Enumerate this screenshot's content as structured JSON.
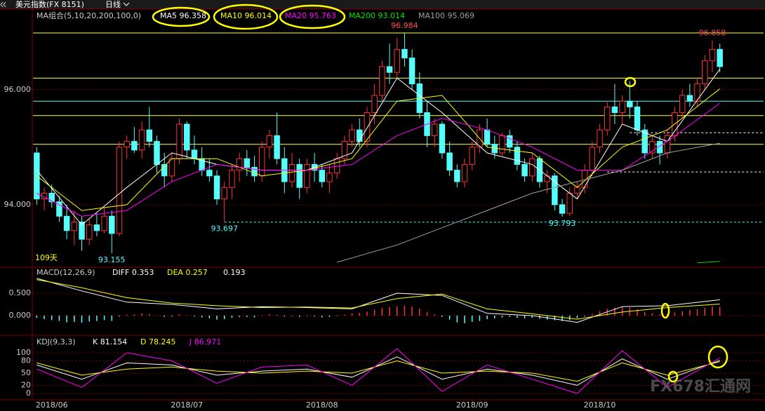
{
  "header": {
    "title": "美元指数(FX 8151)",
    "period": "日线"
  },
  "watermark": "FX678汇通网",
  "chart_data": [
    {
      "type": "candlestick",
      "title": "MA组合(5,10,20,200,100,0)",
      "note": "109天",
      "up_color": "#ff3232",
      "down_color": "#54fcfc",
      "xlim": [
        -0.5,
        91.5
      ],
      "xticks": [
        {
          "value": 2,
          "label": "2018/06"
        },
        {
          "value": 20,
          "label": "2018/07"
        },
        {
          "value": 38,
          "label": "2018/08"
        },
        {
          "value": 58,
          "label": "2018/09"
        },
        {
          "value": 75,
          "label": "2018/10"
        }
      ],
      "ylim": [
        92.95,
        97.07
      ],
      "yticks": [
        {
          "value": 96,
          "label": "96.000"
        },
        {
          "value": 94,
          "label": "94.000"
        }
      ],
      "candles": [
        [
          94.9,
          95.0,
          94.0,
          94.1
        ],
        [
          94.1,
          94.3,
          93.9,
          94.2
        ],
        [
          94.2,
          94.35,
          93.95,
          94.05
        ],
        [
          94.05,
          94.15,
          93.7,
          93.8
        ],
        [
          93.8,
          94.0,
          93.4,
          93.55
        ],
        [
          93.55,
          93.9,
          93.3,
          93.7
        ],
        [
          93.7,
          93.8,
          93.2,
          93.4
        ],
        [
          93.4,
          93.75,
          93.3,
          93.65
        ],
        [
          93.65,
          93.85,
          93.45,
          93.55
        ],
        [
          93.55,
          93.95,
          93.5,
          93.8
        ],
        [
          93.8,
          93.9,
          93.155,
          93.5
        ],
        [
          93.5,
          95.1,
          93.45,
          95.0
        ],
        [
          95.0,
          95.2,
          94.8,
          95.1
        ],
        [
          95.1,
          95.35,
          94.9,
          94.95
        ],
        [
          94.95,
          95.45,
          94.8,
          95.3
        ],
        [
          95.3,
          95.7,
          95.0,
          95.1
        ],
        [
          95.1,
          95.2,
          94.55,
          94.7
        ],
        [
          94.7,
          94.9,
          94.3,
          94.5
        ],
        [
          94.5,
          94.9,
          94.4,
          94.8
        ],
        [
          94.8,
          95.5,
          94.7,
          95.4
        ],
        [
          95.4,
          95.45,
          94.8,
          94.95
        ],
        [
          94.95,
          95.2,
          94.7,
          94.8
        ],
        [
          94.8,
          95.0,
          94.5,
          94.6
        ],
        [
          94.6,
          94.8,
          94.4,
          94.5
        ],
        [
          94.5,
          94.6,
          94.0,
          94.1
        ],
        [
          94.1,
          94.4,
          93.697,
          94.3
        ],
        [
          94.3,
          94.7,
          94.1,
          94.6
        ],
        [
          94.6,
          94.9,
          94.4,
          94.8
        ],
        [
          94.8,
          94.95,
          94.5,
          94.65
        ],
        [
          94.65,
          94.85,
          94.4,
          94.5
        ],
        [
          94.5,
          95.1,
          94.4,
          95.0
        ],
        [
          95.0,
          95.3,
          94.8,
          95.2
        ],
        [
          95.2,
          95.6,
          94.7,
          94.8
        ],
        [
          94.8,
          95.0,
          94.2,
          94.4
        ],
        [
          94.4,
          94.9,
          94.3,
          94.7
        ],
        [
          94.7,
          94.8,
          94.1,
          94.3
        ],
        [
          94.3,
          94.8,
          94.2,
          94.7
        ],
        [
          94.7,
          94.9,
          94.4,
          94.6
        ],
        [
          94.6,
          94.7,
          94.3,
          94.4
        ],
        [
          94.4,
          94.7,
          94.2,
          94.55
        ],
        [
          94.55,
          94.9,
          94.45,
          94.8
        ],
        [
          94.8,
          95.2,
          94.7,
          95.1
        ],
        [
          95.1,
          95.4,
          95.0,
          95.3
        ],
        [
          95.3,
          95.5,
          95.0,
          95.1
        ],
        [
          95.1,
          95.7,
          95.0,
          95.6
        ],
        [
          95.6,
          96.1,
          95.4,
          95.9
        ],
        [
          95.9,
          96.5,
          95.8,
          96.4
        ],
        [
          96.4,
          96.8,
          96.1,
          96.3
        ],
        [
          96.3,
          96.9,
          96.2,
          96.7
        ],
        [
          96.7,
          96.984,
          96.4,
          96.55
        ],
        [
          96.55,
          96.7,
          96.0,
          96.1
        ],
        [
          96.1,
          96.3,
          95.5,
          95.6
        ],
        [
          95.6,
          95.8,
          95.0,
          95.2
        ],
        [
          95.2,
          95.5,
          95.0,
          95.4
        ],
        [
          95.4,
          95.45,
          94.8,
          94.9
        ],
        [
          94.9,
          95.1,
          94.5,
          94.6
        ],
        [
          94.6,
          94.7,
          94.3,
          94.4
        ],
        [
          94.4,
          94.8,
          94.3,
          94.7
        ],
        [
          94.7,
          95.1,
          94.6,
          95.0
        ],
        [
          95.0,
          95.4,
          94.9,
          95.3
        ],
        [
          95.3,
          95.5,
          95.0,
          95.05
        ],
        [
          95.05,
          95.2,
          94.8,
          94.9
        ],
        [
          94.9,
          95.25,
          94.85,
          95.2
        ],
        [
          95.2,
          95.3,
          94.9,
          95.0
        ],
        [
          95.0,
          95.1,
          94.6,
          94.7
        ],
        [
          94.7,
          94.8,
          94.4,
          94.5
        ],
        [
          94.5,
          94.9,
          94.4,
          94.8
        ],
        [
          94.8,
          94.85,
          94.3,
          94.4
        ],
        [
          94.4,
          94.6,
          94.2,
          94.5
        ],
        [
          94.5,
          94.55,
          93.9,
          94.0
        ],
        [
          94.0,
          94.1,
          93.793,
          93.85
        ],
        [
          93.85,
          94.3,
          93.8,
          94.2
        ],
        [
          94.2,
          94.4,
          94.1,
          94.3
        ],
        [
          94.3,
          94.7,
          94.2,
          94.6
        ],
        [
          94.6,
          95.1,
          94.5,
          95.0
        ],
        [
          95.0,
          95.4,
          94.9,
          95.3
        ],
        [
          95.3,
          95.8,
          95.2,
          95.7
        ],
        [
          95.7,
          96.1,
          95.4,
          95.6
        ],
        [
          95.6,
          95.9,
          95.4,
          95.8
        ],
        [
          95.8,
          96.15,
          95.5,
          95.7
        ],
        [
          95.7,
          95.8,
          95.2,
          95.3
        ],
        [
          95.3,
          95.4,
          94.8,
          94.9
        ],
        [
          94.9,
          95.2,
          94.8,
          95.1
        ],
        [
          95.1,
          95.2,
          94.7,
          94.9
        ],
        [
          94.9,
          95.3,
          94.8,
          95.2
        ],
        [
          95.2,
          95.7,
          95.1,
          95.6
        ],
        [
          95.6,
          96.0,
          95.5,
          95.9
        ],
        [
          95.9,
          96.1,
          95.7,
          95.8
        ],
        [
          95.8,
          96.2,
          95.7,
          96.1
        ],
        [
          96.1,
          96.6,
          96.0,
          96.5
        ],
        [
          96.5,
          96.858,
          96.3,
          96.7
        ],
        [
          96.7,
          96.8,
          96.3,
          96.4
        ]
      ],
      "series": [
        {
          "name": "MA5 96.358",
          "color": "#ffffff",
          "x": [
            0,
            6,
            12,
            18,
            24,
            30,
            36,
            42,
            48,
            54,
            60,
            66,
            72,
            78,
            84,
            91
          ],
          "values": [
            94.6,
            93.65,
            94.3,
            94.9,
            94.7,
            94.6,
            94.6,
            94.9,
            96.2,
            95.6,
            94.9,
            94.7,
            94.1,
            95.4,
            95.1,
            96.358
          ]
        },
        {
          "name": "MA10 96.014",
          "color": "#ffff00",
          "x": [
            0,
            6,
            12,
            18,
            24,
            30,
            36,
            42,
            48,
            54,
            60,
            66,
            72,
            78,
            84,
            91
          ],
          "values": [
            94.5,
            93.9,
            94.0,
            94.8,
            94.8,
            94.5,
            94.6,
            94.8,
            95.8,
            95.9,
            95.0,
            94.9,
            94.3,
            95.0,
            95.3,
            96.014
          ]
        },
        {
          "name": "MA20 95.763",
          "color": "#ff00ff",
          "x": [
            0,
            6,
            12,
            18,
            24,
            30,
            36,
            42,
            48,
            54,
            60,
            66,
            72,
            78,
            84,
            91
          ],
          "values": [
            94.2,
            93.8,
            93.9,
            94.4,
            94.7,
            94.6,
            94.6,
            94.7,
            95.2,
            95.5,
            95.3,
            95.0,
            94.6,
            94.6,
            95.1,
            95.763
          ]
        },
        {
          "name": "MA200 93.014",
          "color": "#00e000",
          "x": [
            88,
            91
          ],
          "values": [
            92.99,
            93.014
          ]
        },
        {
          "name": "MA100 95.069",
          "color": "#a0a0a0",
          "x": [
            40,
            48,
            54,
            60,
            66,
            72,
            78,
            84,
            91
          ],
          "values": [
            93.0,
            93.3,
            93.6,
            93.9,
            94.2,
            94.4,
            94.6,
            94.9,
            95.069
          ]
        }
      ],
      "hlines": [
        {
          "value": 96.984,
          "color": "#ffff66",
          "style": "solid",
          "from": -0.5
        },
        {
          "value": 96.2,
          "color": "#ffff66",
          "style": "solid",
          "from": -0.5
        },
        {
          "value": 95.8,
          "color": "#54fcfc",
          "style": "solid",
          "from": -0.5
        },
        {
          "value": 95.55,
          "color": "#ffff66",
          "style": "solid",
          "from": -0.5
        },
        {
          "value": 95.05,
          "color": "#ffff66",
          "style": "solid",
          "from": -0.5
        },
        {
          "value": 95.25,
          "color": "#ffffff",
          "style": "dashed",
          "from": 79
        },
        {
          "value": 94.57,
          "color": "#ffffff",
          "style": "dashed",
          "from": 76
        },
        {
          "value": 93.697,
          "color": "#54fcfc",
          "style": "dashed",
          "from": 25
        }
      ],
      "annotations": [
        96.984,
        96.858,
        93.155,
        93.697,
        93.793
      ]
    },
    {
      "type": "macd",
      "title": "MACD(12,26,9)",
      "up_color": "#ff3232",
      "down_color": "#54fcfc",
      "xlim": [
        -0.5,
        91.5
      ],
      "ylim": [
        -0.344,
        0.906
      ],
      "yticks": [
        {
          "value": 0.5,
          "label": "0.500"
        },
        {
          "value": 0,
          "label": "0.000"
        }
      ],
      "histogram": [
        -0.05,
        -0.08,
        -0.1,
        -0.12,
        -0.15,
        -0.14,
        -0.16,
        -0.13,
        -0.12,
        -0.1,
        -0.12,
        -0.02,
        0.02,
        0.03,
        0.05,
        0.04,
        0.0,
        -0.03,
        -0.02,
        0.03,
        0.01,
        -0.02,
        -0.04,
        -0.06,
        -0.09,
        -0.08,
        -0.05,
        -0.03,
        -0.03,
        -0.04,
        0.01,
        0.03,
        0.02,
        -0.02,
        -0.01,
        -0.03,
        -0.01,
        -0.02,
        -0.04,
        -0.03,
        -0.01,
        0.02,
        0.05,
        0.06,
        0.09,
        0.13,
        0.17,
        0.19,
        0.21,
        0.22,
        0.2,
        0.15,
        0.08,
        0.03,
        -0.03,
        -0.09,
        -0.15,
        -0.17,
        -0.14,
        -0.12,
        -0.08,
        -0.06,
        -0.04,
        -0.03,
        -0.05,
        -0.06,
        -0.05,
        -0.07,
        -0.09,
        -0.1,
        -0.12,
        -0.1,
        -0.06,
        -0.02,
        0.04,
        0.1,
        0.15,
        0.18,
        0.2,
        0.18,
        0.14,
        0.08,
        0.05,
        0.03,
        0.04,
        0.07,
        0.1,
        0.12,
        0.14,
        0.17,
        0.2,
        0.193
      ],
      "series": [
        {
          "name": "DIFF 0.353",
          "color": "#ffffff",
          "x": [
            0,
            6,
            12,
            18,
            24,
            30,
            36,
            42,
            48,
            54,
            60,
            66,
            72,
            78,
            84,
            91
          ],
          "values": [
            0.83,
            0.55,
            0.3,
            0.25,
            0.15,
            0.2,
            0.18,
            0.15,
            0.5,
            0.45,
            0.05,
            0.0,
            -0.15,
            0.2,
            0.22,
            0.353
          ]
        },
        {
          "name": "DEA 0.257",
          "color": "#ffff00",
          "x": [
            0,
            6,
            12,
            18,
            24,
            30,
            36,
            42,
            48,
            54,
            60,
            66,
            72,
            78,
            84,
            91
          ],
          "values": [
            0.8,
            0.62,
            0.4,
            0.28,
            0.22,
            0.18,
            0.19,
            0.17,
            0.38,
            0.48,
            0.15,
            0.04,
            -0.08,
            0.08,
            0.18,
            0.257
          ]
        }
      ]
    },
    {
      "type": "kdj",
      "title": "KDJ(9,3,3)",
      "xlim": [
        -0.5,
        91.5
      ],
      "ylim": [
        -12,
        136
      ],
      "yticks": [
        0,
        20,
        50,
        80,
        100
      ],
      "series": [
        {
          "name": "K 81.154",
          "color": "#ffffff",
          "x": [
            0,
            6,
            12,
            18,
            24,
            30,
            36,
            42,
            48,
            54,
            60,
            66,
            72,
            78,
            84,
            91
          ],
          "values": [
            70,
            35,
            75,
            70,
            45,
            55,
            60,
            40,
            90,
            35,
            60,
            45,
            20,
            85,
            35,
            81.154
          ]
        },
        {
          "name": "D 78.245",
          "color": "#ffff00",
          "x": [
            0,
            6,
            12,
            18,
            24,
            30,
            36,
            42,
            48,
            54,
            60,
            66,
            72,
            78,
            84,
            91
          ],
          "values": [
            75,
            45,
            60,
            65,
            55,
            50,
            55,
            50,
            80,
            50,
            55,
            50,
            30,
            75,
            45,
            78.245
          ]
        },
        {
          "name": "J 86.971",
          "color": "#ff00ff",
          "x": [
            0,
            6,
            12,
            18,
            24,
            30,
            36,
            42,
            48,
            54,
            60,
            66,
            72,
            78,
            84,
            91
          ],
          "values": [
            60,
            15,
            100,
            80,
            25,
            65,
            70,
            20,
            110,
            5,
            70,
            35,
            0,
            105,
            15,
            86.971
          ]
        }
      ]
    }
  ]
}
